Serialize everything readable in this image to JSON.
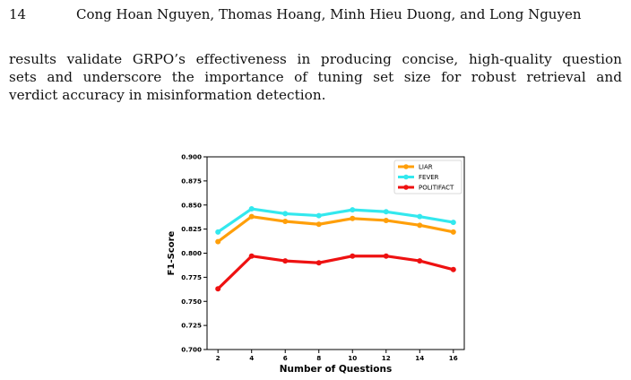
{
  "header": {
    "page_number": "14",
    "authors": "Cong Hoan Nguyen, Thomas Hoang, Minh Hieu Duong, and Long Nguyen"
  },
  "body": {
    "lines": [
      "results validate GRPO’s effectiveness in producing concise, high-quality question",
      "sets and underscore the importance of tuning set size for robust retrieval and",
      "verdict accuracy in misinformation detection."
    ]
  },
  "chart_data": {
    "type": "line",
    "xlabel": "Number of Questions",
    "ylabel": "F1-Score",
    "x": [
      2,
      4,
      6,
      8,
      10,
      12,
      14,
      16
    ],
    "ylim": [
      0.7,
      0.9
    ],
    "yticks": [
      "0.700",
      "0.725",
      "0.750",
      "0.775",
      "0.800",
      "0.825",
      "0.850",
      "0.875",
      "0.900"
    ],
    "xticks": [
      "2",
      "4",
      "6",
      "8",
      "10",
      "12",
      "14",
      "16"
    ],
    "grid": false,
    "legend_position": "top-right",
    "series": [
      {
        "name": "LIAR",
        "color": "#ff9f0a",
        "values": [
          0.812,
          0.838,
          0.833,
          0.83,
          0.836,
          0.834,
          0.829,
          0.822
        ]
      },
      {
        "name": "FEVER",
        "color": "#33e8ee",
        "values": [
          0.822,
          0.846,
          0.841,
          0.839,
          0.845,
          0.843,
          0.838,
          0.832
        ]
      },
      {
        "name": "POLITIFACT",
        "color": "#ee1111",
        "values": [
          0.763,
          0.797,
          0.792,
          0.79,
          0.797,
          0.797,
          0.792,
          0.783
        ]
      }
    ]
  }
}
